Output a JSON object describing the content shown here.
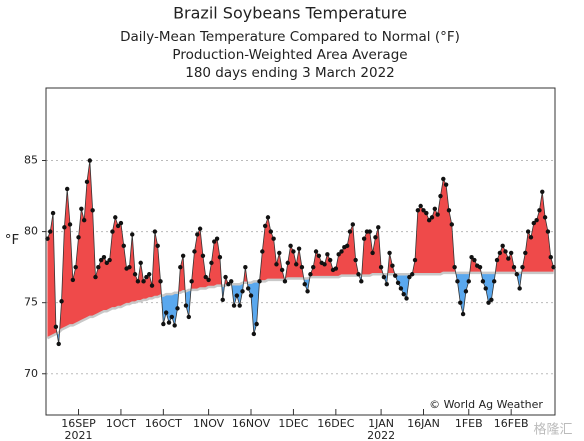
{
  "chart_data": {
    "type": "anomaly-area",
    "title": "Brazil Soybeans Temperature",
    "subtitle": [
      "Daily-Mean Temperature Compared to Normal (°F)",
      "Production-Weighted Area Average",
      "180 days ending 3 March 2022"
    ],
    "y_label": "°F",
    "annotation": "© World Ag Weather",
    "watermark": "格隆汇",
    "xlim": [
      -0.5,
      179.5
    ],
    "xticks": [
      {
        "value": 11,
        "label": "16SEP"
      },
      {
        "value": 26,
        "label": "1OCT"
      },
      {
        "value": 41,
        "label": "16OCT"
      },
      {
        "value": 57,
        "label": "1NOV"
      },
      {
        "value": 72,
        "label": "16NOV"
      },
      {
        "value": 87,
        "label": "1DEC"
      },
      {
        "value": 102,
        "label": "16DEC"
      },
      {
        "value": 118,
        "label": "1JAN"
      },
      {
        "value": 133,
        "label": "16JAN"
      },
      {
        "value": 149,
        "label": "1FEB"
      },
      {
        "value": 164,
        "label": "16FEB"
      }
    ],
    "year_labels": [
      {
        "value": 11,
        "label": "2021"
      },
      {
        "value": 118,
        "label": "2022"
      }
    ],
    "ylim": [
      67.1,
      90.1
    ],
    "yticks": [
      70,
      75,
      80,
      85
    ],
    "grid": true,
    "series": [
      {
        "above_color": "#ef4a4a",
        "below_color": "#5aa8ee",
        "marker_color": "#111111",
        "values": [
          79.5,
          80,
          81.3,
          73.3,
          72.1,
          75.1,
          80.3,
          83,
          80.5,
          76.6,
          77.5,
          79.6,
          81.6,
          80.8,
          83.5,
          85,
          81.5,
          76.8,
          77.5,
          78,
          78.2,
          77.8,
          78,
          80,
          81,
          80.4,
          80.6,
          79,
          77.4,
          77.5,
          79.8,
          77,
          76.5,
          77.8,
          76.5,
          76.8,
          77,
          76.2,
          80,
          79,
          76.5,
          73.5,
          74.3,
          73.6,
          74,
          73.4,
          74.6,
          77.5,
          78.3,
          74.8,
          74,
          76.5,
          78.6,
          79.8,
          80.2,
          78.3,
          76.8,
          76.6,
          77.8,
          79.3,
          79.5,
          78.2,
          75.2,
          76.8,
          76.3,
          76.5,
          74.8,
          75.5,
          74.8,
          75.8,
          77.5,
          76,
          75.5,
          72.8,
          73.5,
          76.5,
          78.6,
          80.4,
          81,
          80,
          79.5,
          77.7,
          78.5,
          77.3,
          76.5,
          77.8,
          79,
          78.6,
          77.7,
          78.8,
          77.5,
          76.3,
          75.8,
          77,
          77.5,
          78.6,
          78.3,
          77.8,
          77.7,
          78.4,
          78,
          77.3,
          77.4,
          78.4,
          78.6,
          78.9,
          79,
          80,
          80.5,
          78,
          77,
          76.5,
          79.5,
          80,
          80,
          78.5,
          79.6,
          80.3,
          77.5,
          76.8,
          76.3,
          78.5,
          77.6,
          76.9,
          76.4,
          76,
          75.6,
          75.3,
          76.8,
          77,
          78,
          81.5,
          81.8,
          81.5,
          81.3,
          80.8,
          81,
          81.6,
          81.2,
          82.5,
          83.7,
          83.3,
          81.5,
          80.5,
          77.5,
          76.5,
          75,
          74.2,
          75.8,
          76.5,
          78.2,
          78,
          77.6,
          77.5,
          76.5,
          76,
          75,
          75.2,
          76.5,
          78,
          78.5,
          79,
          78.6,
          78.1,
          78.5,
          77.5,
          77,
          76,
          77.5,
          78.5,
          80,
          79.6,
          80.6,
          80.8,
          81.5,
          82.8,
          81,
          80,
          78.2,
          77.5
        ]
      }
    ],
    "normal": {
      "color": "#c8c8c8",
      "values": [
        72.5,
        72.6,
        72.7,
        72.8,
        72.9,
        73.1,
        73.2,
        73.3,
        73.4,
        73.4,
        73.5,
        73.6,
        73.7,
        73.8,
        73.9,
        74,
        74,
        74.1,
        74.2,
        74.3,
        74.4,
        74.4,
        74.5,
        74.6,
        74.6,
        74.7,
        74.7,
        74.8,
        74.9,
        74.9,
        75,
        75,
        75.1,
        75.1,
        75.2,
        75.2,
        75.3,
        75.3,
        75.4,
        75.4,
        75.5,
        75.5,
        75.6,
        75.6,
        75.6,
        75.7,
        75.7,
        75.7,
        75.8,
        75.8,
        75.9,
        75.9,
        75.9,
        75.9,
        76,
        76,
        76,
        76.1,
        76.1,
        76.1,
        76.2,
        76.2,
        76.2,
        76.2,
        76.3,
        76.3,
        76.3,
        76.3,
        76.3,
        76.4,
        76.4,
        76.4,
        76.4,
        76.5,
        76.5,
        76.5,
        76.5,
        76.5,
        76.6,
        76.6,
        76.6,
        76.6,
        76.6,
        76.6,
        76.6,
        76.7,
        76.7,
        76.7,
        76.7,
        76.7,
        76.7,
        76.7,
        76.7,
        76.8,
        76.8,
        76.8,
        76.8,
        76.8,
        76.8,
        76.8,
        76.8,
        76.8,
        76.8,
        76.8,
        76.9,
        76.9,
        76.9,
        76.9,
        76.9,
        76.9,
        76.9,
        76.9,
        76.9,
        76.9,
        76.9,
        77,
        77,
        77,
        77,
        77,
        77,
        77,
        77,
        77,
        77,
        77,
        77,
        77,
        77,
        77,
        77,
        77,
        77,
        77,
        77,
        77,
        77,
        77,
        77,
        77,
        77.1,
        77.1,
        77.1,
        77.1,
        77.1,
        77.1,
        77.1,
        77.1,
        77.1,
        77.1,
        77.1,
        77.1,
        77.1,
        77.1,
        77.1,
        77.1,
        77.1,
        77.1,
        77.1,
        77.1,
        77.1,
        77.1,
        77.1,
        77.1,
        77.1,
        77.1,
        77.1,
        77.1,
        77.1,
        77.1,
        77.1,
        77.1,
        77.1,
        77.1,
        77.1,
        77.1,
        77.1,
        77.1,
        77.1,
        77.1
      ]
    }
  }
}
